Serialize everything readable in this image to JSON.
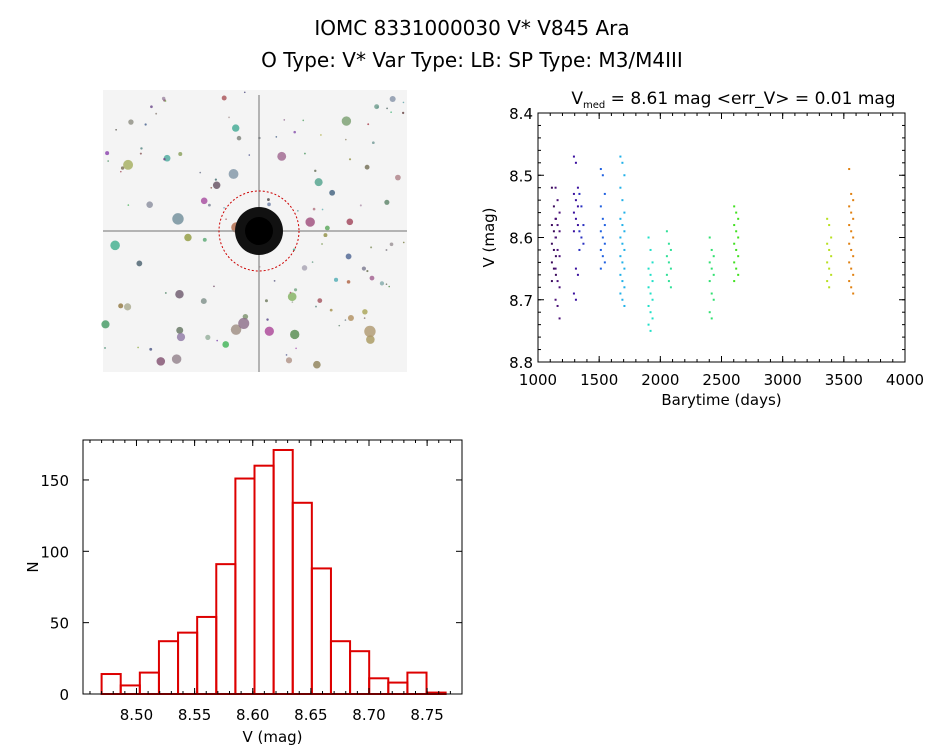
{
  "header": {
    "title": "IOMC 8331000030    V* V845 Ara",
    "subtitle": "O Type: V*  Var Type: LB:  SP Type: M3/M4III"
  },
  "finder_image": {
    "kind": "star-field-grayscale",
    "marker_color": "#cc0000"
  },
  "chart_data": [
    {
      "type": "scatter",
      "title_prefix": "V",
      "title_sub": "med",
      "title_rest": " = 8.61 mag <err_V> = 0.01 mag",
      "xlabel": "Barytime (days)",
      "ylabel": "V (mag)",
      "xlim": [
        1000,
        4000
      ],
      "ylim": [
        8.8,
        8.4
      ],
      "y_inverted": true,
      "xticks": [
        "1000",
        "1500",
        "2000",
        "2500",
        "3000",
        "3500",
        "4000"
      ],
      "yticks": [
        "8.4",
        "8.5",
        "8.6",
        "8.7",
        "8.8"
      ],
      "grid": false,
      "clusters": [
        {
          "t": 1130,
          "color": "#3a0a5a",
          "v": [
            8.52,
            8.55,
            8.57,
            8.58,
            8.59,
            8.6,
            8.61,
            8.62,
            8.63,
            8.64,
            8.65,
            8.66,
            8.67
          ]
        },
        {
          "t": 1160,
          "color": "#4b1078",
          "v": [
            8.52,
            8.54,
            8.56,
            8.57,
            8.58,
            8.59,
            8.6,
            8.62,
            8.63,
            8.65,
            8.67,
            8.68,
            8.7,
            8.71,
            8.73
          ]
        },
        {
          "t": 1310,
          "color": "#3a109e",
          "v": [
            8.47,
            8.48,
            8.52,
            8.53,
            8.54,
            8.55,
            8.56,
            8.57,
            8.58,
            8.59,
            8.65,
            8.66,
            8.69,
            8.7
          ]
        },
        {
          "t": 1355,
          "color": "#2a30c0",
          "v": [
            8.53,
            8.55,
            8.58,
            8.59,
            8.6,
            8.61,
            8.62
          ]
        },
        {
          "t": 1530,
          "color": "#2060e0",
          "v": [
            8.49,
            8.5,
            8.53,
            8.55,
            8.57,
            8.58,
            8.59,
            8.6,
            8.61,
            8.62,
            8.63,
            8.64,
            8.65
          ]
        },
        {
          "t": 1690,
          "color": "#20b0e8",
          "v": [
            8.47,
            8.48,
            8.5,
            8.52,
            8.54,
            8.56,
            8.57,
            8.58,
            8.59,
            8.6,
            8.61,
            8.62,
            8.63,
            8.64,
            8.65,
            8.66,
            8.67,
            8.68,
            8.69,
            8.7,
            8.71
          ]
        },
        {
          "t": 1920,
          "color": "#20e0c8",
          "v": [
            8.6,
            8.62,
            8.64,
            8.65,
            8.66,
            8.67,
            8.68,
            8.69,
            8.7,
            8.71,
            8.72,
            8.73,
            8.74,
            8.75
          ]
        },
        {
          "t": 2070,
          "color": "#30e098",
          "v": [
            8.59,
            8.61,
            8.62,
            8.63,
            8.64,
            8.65,
            8.66,
            8.67,
            8.68
          ]
        },
        {
          "t": 2420,
          "color": "#30e070",
          "v": [
            8.6,
            8.62,
            8.63,
            8.64,
            8.65,
            8.66,
            8.67,
            8.69,
            8.7,
            8.72,
            8.73
          ]
        },
        {
          "t": 2620,
          "color": "#40e020",
          "v": [
            8.55,
            8.56,
            8.57,
            8.58,
            8.59,
            8.6,
            8.61,
            8.62,
            8.63,
            8.64,
            8.65,
            8.66,
            8.67
          ]
        },
        {
          "t": 3380,
          "color": "#b8e020",
          "v": [
            8.57,
            8.58,
            8.6,
            8.61,
            8.62,
            8.63,
            8.64,
            8.65,
            8.66,
            8.67,
            8.68
          ]
        },
        {
          "t": 3560,
          "color": "#e08010",
          "v": [
            8.49,
            8.53,
            8.54,
            8.55,
            8.56,
            8.57,
            8.58,
            8.59,
            8.6,
            8.61,
            8.62,
            8.63,
            8.64,
            8.65,
            8.66,
            8.67,
            8.68,
            8.69
          ]
        }
      ]
    },
    {
      "type": "bar",
      "subtype": "histogram",
      "xlabel": "V (mag)",
      "ylabel": "N",
      "xlim": [
        8.454,
        8.78
      ],
      "ylim": [
        0,
        178
      ],
      "xticks": [
        "8.50",
        "8.55",
        "8.60",
        "8.65",
        "8.70",
        "8.75"
      ],
      "yticks": [
        "0",
        "50",
        "100",
        "150"
      ],
      "bin_start": 8.47,
      "bin_width": 0.01644,
      "values": [
        14,
        6,
        15,
        37,
        43,
        54,
        91,
        151,
        160,
        171,
        134,
        88,
        37,
        30,
        11,
        8,
        15,
        1
      ],
      "color": "#dd0000",
      "grid": false
    }
  ]
}
